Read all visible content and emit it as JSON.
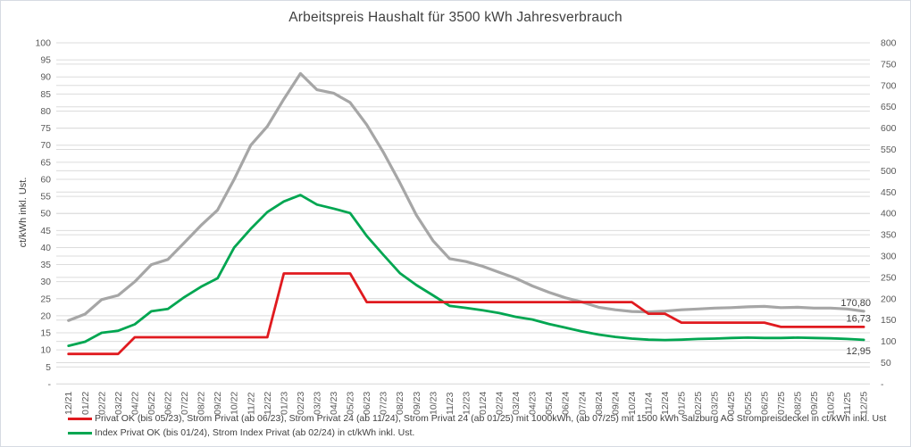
{
  "window": {
    "title": "Arbeitspreis Haushalt für 3500 kWh Jahresverbrauch"
  },
  "colors": {
    "red": "#e01a1f",
    "green": "#00a651",
    "gray": "#a6a6a6",
    "grid": "#dcdcdc",
    "tick_text": "#595959",
    "label_text": "#404040",
    "frame_border": "#d6dbe2"
  },
  "chart_data": {
    "type": "line",
    "title": "Arbeitspreis Haushalt für 3500 kWh Jahresverbrauch",
    "ylabel_left": "ct/kWh inkl. Ust.",
    "y_left_range": [
      0,
      100
    ],
    "y_right_range": [
      0,
      800
    ],
    "grid": "horizontal",
    "legend_position": "bottom-left",
    "categories": [
      "12/21",
      "01/22",
      "02/22",
      "03/22",
      "04/22",
      "05/22",
      "06/22",
      "07/22",
      "08/22",
      "09/22",
      "10/22",
      "11/22",
      "12/22",
      "01/23",
      "02/23",
      "03/23",
      "04/23",
      "05/23",
      "06/23",
      "07/23",
      "08/23",
      "09/23",
      "10/23",
      "11/23",
      "12/23",
      "01/24",
      "02/24",
      "03/24",
      "04/23",
      "05/24",
      "06/24",
      "07/24",
      "08/24",
      "09/24",
      "10/24",
      "11/24",
      "12/24",
      "01/25",
      "02/25",
      "03/25",
      "04/25",
      "05/25",
      "06/25",
      "07/25",
      "08/25",
      "09/25",
      "10/25",
      "11/25",
      "12/25"
    ],
    "left_ticks": [
      {
        "value": 100,
        "label": "100"
      },
      {
        "value": 95,
        "label": "95"
      },
      {
        "value": 90,
        "label": "90"
      },
      {
        "value": 85,
        "label": "85"
      },
      {
        "value": 80,
        "label": "80"
      },
      {
        "value": 75,
        "label": "75"
      },
      {
        "value": 70,
        "label": "70"
      },
      {
        "value": 65,
        "label": "65"
      },
      {
        "value": 60,
        "label": "60"
      },
      {
        "value": 55,
        "label": "55"
      },
      {
        "value": 50,
        "label": "50"
      },
      {
        "value": 45,
        "label": "45"
      },
      {
        "value": 40,
        "label": "40"
      },
      {
        "value": 35,
        "label": "35"
      },
      {
        "value": 30,
        "label": "30"
      },
      {
        "value": 25,
        "label": "25"
      },
      {
        "value": 20,
        "label": "20"
      },
      {
        "value": 15,
        "label": "15"
      },
      {
        "value": 10,
        "label": "10"
      },
      {
        "value": 5,
        "label": "5"
      },
      {
        "value": 0,
        "label": "-"
      }
    ],
    "right_ticks": [
      {
        "value": 800,
        "label": "800"
      },
      {
        "value": 750,
        "label": "750"
      },
      {
        "value": 700,
        "label": "700"
      },
      {
        "value": 650,
        "label": "650"
      },
      {
        "value": 600,
        "label": "600"
      },
      {
        "value": 550,
        "label": "550"
      },
      {
        "value": 500,
        "label": "500"
      },
      {
        "value": 450,
        "label": "450"
      },
      {
        "value": 400,
        "label": "400"
      },
      {
        "value": 350,
        "label": "350"
      },
      {
        "value": 300,
        "label": "300"
      },
      {
        "value": 250,
        "label": "250"
      },
      {
        "value": 200,
        "label": "200"
      },
      {
        "value": 150,
        "label": "150"
      },
      {
        "value": 100,
        "label": "100"
      },
      {
        "value": 50,
        "label": "50"
      },
      {
        "value": 0,
        "label": "-"
      }
    ],
    "series": [
      {
        "key": "red",
        "color": "#e01a1f",
        "axis": "left",
        "width": 2.8,
        "values": [
          8.8,
          8.8,
          8.8,
          8.8,
          13.7,
          13.7,
          13.7,
          13.7,
          13.7,
          13.7,
          13.7,
          13.7,
          13.7,
          32.4,
          32.4,
          32.4,
          32.4,
          32.4,
          24.0,
          24.0,
          24.0,
          24.0,
          24.0,
          24.0,
          24.0,
          24.0,
          24.0,
          24.0,
          24.0,
          24.0,
          24.0,
          24.0,
          24.0,
          24.0,
          24.0,
          20.6,
          20.6,
          18.0,
          18.0,
          18.0,
          18.0,
          18.0,
          18.0,
          16.73,
          16.73,
          16.73,
          16.73,
          16.73,
          16.73
        ]
      },
      {
        "key": "green",
        "color": "#00a651",
        "axis": "left",
        "width": 2.8,
        "values": [
          11.2,
          12.4,
          15.0,
          15.6,
          17.5,
          21.3,
          22.0,
          25.5,
          28.5,
          31.0,
          40.0,
          45.5,
          50.4,
          53.5,
          55.4,
          52.6,
          51.4,
          50.1,
          43.4,
          37.9,
          32.5,
          29.0,
          26.0,
          22.9,
          22.3,
          21.6,
          20.8,
          19.7,
          18.9,
          17.6,
          16.5,
          15.4,
          14.5,
          13.8,
          13.3,
          13.0,
          12.9,
          13.0,
          13.2,
          13.3,
          13.5,
          13.6,
          13.5,
          13.5,
          13.6,
          13.5,
          13.4,
          13.2,
          12.95
        ]
      },
      {
        "key": "gray",
        "color": "#a6a6a6",
        "axis": "right",
        "width": 3.2,
        "values": [
          149,
          164,
          198,
          208,
          240,
          280,
          292,
          332,
          372,
          408,
          480,
          560,
          604,
          668,
          728,
          690,
          682,
          660,
          608,
          544,
          472,
          396,
          336,
          294,
          287,
          276,
          262,
          248,
          230,
          215,
          202,
          192,
          180,
          174,
          170,
          169,
          171,
          174,
          176,
          178,
          179,
          181,
          182,
          179,
          180,
          178,
          178,
          176,
          170.8
        ]
      }
    ],
    "annotations": [
      {
        "label": "170,80",
        "series": 2,
        "side": "above"
      },
      {
        "label": "16,73",
        "series": 0,
        "side": "above"
      },
      {
        "label": "12,95",
        "series": 1,
        "side": "below"
      }
    ],
    "legend": [
      {
        "series": 0,
        "label": "Privat OK (bis 05/23), Strom Privat (ab 06/23), Strom Privat 24 (ab 11/24), Strom Privat 24 (ab 01/25) mit 1000kWh, (ab 07/25) mit 1500 kWh Salzburg AG Strompreisdeckel in ct/kWh inkl. Ust"
      },
      {
        "series": 1,
        "label": "Index Privat OK (bis 01/24), Strom Index Privat (ab 02/24) in ct/kWh inkl. Ust."
      }
    ]
  }
}
